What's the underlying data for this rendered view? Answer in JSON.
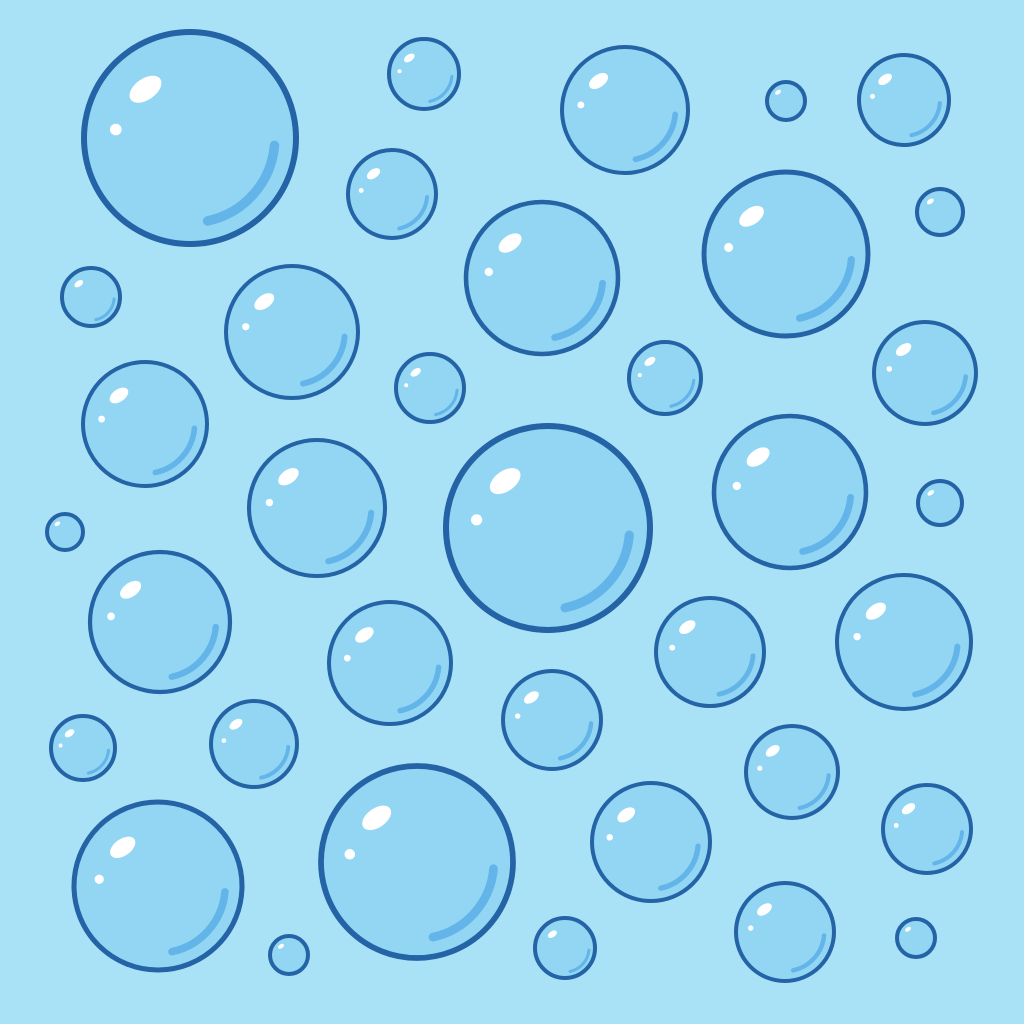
{
  "scene": {
    "subject": "bubble-pattern",
    "colors": {
      "background": "#A9E2F6",
      "bubble_fill": "#92D6F3",
      "bubble_outline": "#2463A5",
      "highlight": "#FFFFFF",
      "shine": "#5BAEE6"
    }
  }
}
